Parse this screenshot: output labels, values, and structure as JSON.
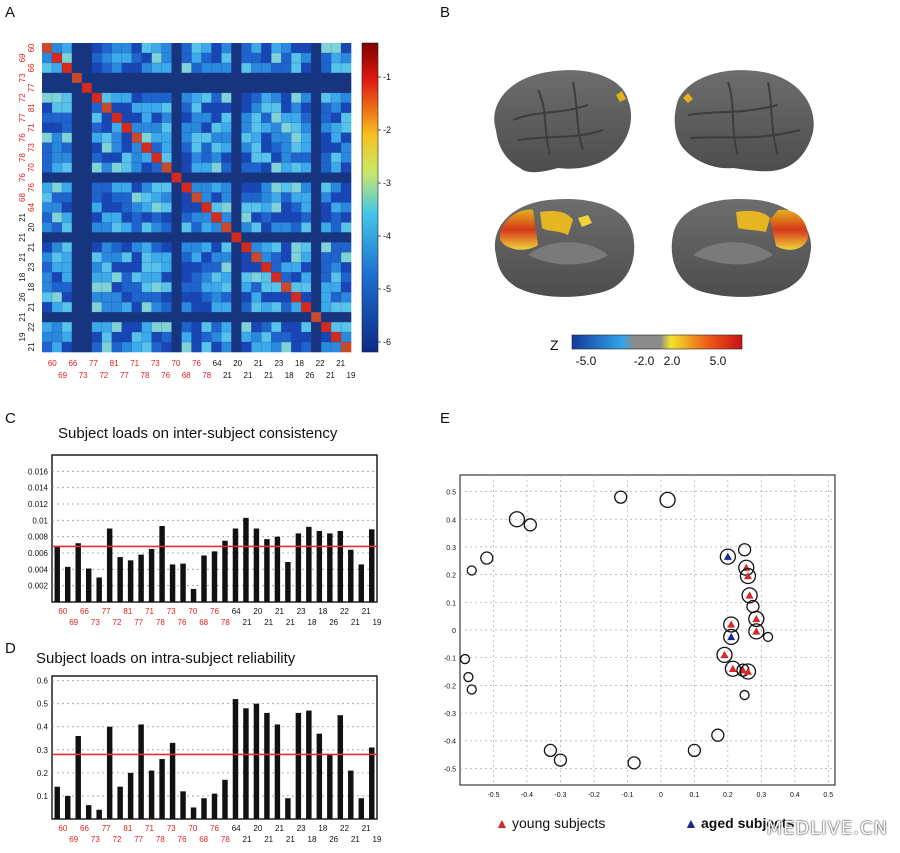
{
  "panels": {
    "a": "A",
    "b": "B",
    "c": "C",
    "d": "D",
    "e": "E"
  },
  "matrix": {
    "row_labels": [
      "60",
      "69",
      "66",
      "73",
      "77",
      "72",
      "81",
      "77",
      "71",
      "76",
      "73",
      "78",
      "70",
      "76",
      "76",
      "68",
      "64",
      "21",
      "20",
      "21",
      "21",
      "21",
      "23",
      "18",
      "18",
      "26",
      "21",
      "21",
      "22",
      "19",
      "21"
    ],
    "row_label_colors": [
      "red",
      "red",
      "red",
      "red",
      "red",
      "red",
      "red",
      "red",
      "red",
      "red",
      "red",
      "red",
      "red",
      "red",
      "red",
      "red",
      "red",
      "black",
      "black",
      "black",
      "black",
      "black",
      "black",
      "black",
      "black",
      "black",
      "black",
      "black",
      "black",
      "black",
      "black"
    ],
    "bottom_labels_top": [
      "60",
      "66",
      "77",
      "81",
      "71",
      "73",
      "70",
      "76",
      "64",
      "20",
      "21",
      "23",
      "18",
      "22",
      "21"
    ],
    "bottom_labels_bot": [
      "69",
      "73",
      "72",
      "77",
      "78",
      "76",
      "68",
      "78",
      "21",
      "21",
      "21",
      "18",
      "26",
      "21",
      "19"
    ],
    "colorbar_ticks": [
      "-1",
      "-2",
      "-3",
      "-4",
      "-5",
      "-6"
    ]
  },
  "brain": {
    "z_label": "Z",
    "scale_ticks": [
      "-5.0",
      "-2.0",
      "2.0",
      "5.0"
    ]
  },
  "chart_data": [
    {
      "id": "C",
      "type": "bar",
      "title": "Subject loads on inter-subject consistency",
      "yticks": [
        "0.002",
        "0.004",
        "0.006",
        "0.008",
        "0.01",
        "0.012",
        "0.014",
        "0.016"
      ],
      "ylim": [
        0,
        0.018
      ],
      "mean_line": 0.0068,
      "values": [
        0.0068,
        0.0043,
        0.0072,
        0.0041,
        0.003,
        0.009,
        0.0055,
        0.0051,
        0.0058,
        0.0065,
        0.0093,
        0.0046,
        0.0047,
        0.0016,
        0.0057,
        0.0062,
        0.0075,
        0.009,
        0.0103,
        0.009,
        0.0077,
        0.008,
        0.0049,
        0.0084,
        0.0092,
        0.0087,
        0.0084,
        0.0087,
        0.0064,
        0.0046,
        0.0089
      ],
      "xlabels_top": [
        "60",
        "66",
        "77",
        "81",
        "71",
        "73",
        "70",
        "76",
        "64",
        "20",
        "21",
        "23",
        "18",
        "22",
        "21"
      ],
      "xlabels_bot": [
        "69",
        "73",
        "72",
        "77",
        "78",
        "76",
        "68",
        "78",
        "21",
        "21",
        "21",
        "18",
        "26",
        "21",
        "19"
      ]
    },
    {
      "id": "D",
      "type": "bar",
      "title": "Subject loads on intra-subject reliability",
      "yticks": [
        "0.1",
        "0.2",
        "0.3",
        "0.4",
        "0.5",
        "0.6"
      ],
      "ylim": [
        0,
        0.62
      ],
      "mean_line": 0.28,
      "values": [
        0.14,
        0.1,
        0.36,
        0.06,
        0.04,
        0.4,
        0.14,
        0.2,
        0.41,
        0.21,
        0.26,
        0.33,
        0.12,
        0.05,
        0.09,
        0.11,
        0.17,
        0.52,
        0.48,
        0.5,
        0.46,
        0.41,
        0.09,
        0.46,
        0.47,
        0.37,
        0.28,
        0.45,
        0.21,
        0.09,
        0.31
      ],
      "xlabels_top": [
        "60",
        "66",
        "77",
        "81",
        "71",
        "73",
        "70",
        "76",
        "64",
        "20",
        "21",
        "23",
        "18",
        "22",
        "21"
      ],
      "xlabels_bot": [
        "69",
        "73",
        "72",
        "77",
        "78",
        "76",
        "68",
        "78",
        "21",
        "21",
        "21",
        "18",
        "26",
        "21",
        "19"
      ]
    },
    {
      "id": "E",
      "type": "scatter",
      "xticks": [
        "-0.5",
        "-0.4",
        "-0.3",
        "-0.2",
        "-0.1",
        "0",
        "0.1",
        "0.2",
        "0.3",
        "0.4",
        "0.5"
      ],
      "yticks": [
        "0.5",
        "0.4",
        "0.3",
        "0.2",
        "0.1",
        "0",
        "-0.1",
        "-0.2",
        "-0.3",
        "-0.4",
        "-0.5"
      ],
      "xlim": [
        -0.6,
        0.52
      ],
      "ylim": [
        -0.56,
        0.56
      ],
      "legend": {
        "young": "young subjects",
        "aged": "aged subjects"
      },
      "points": [
        {
          "x": -0.585,
          "y": -0.105,
          "s": "s",
          "m": "none"
        },
        {
          "x": -0.575,
          "y": -0.17,
          "s": "s",
          "m": "none"
        },
        {
          "x": -0.565,
          "y": -0.215,
          "s": "s",
          "m": "none"
        },
        {
          "x": -0.565,
          "y": 0.215,
          "s": "s",
          "m": "none"
        },
        {
          "x": -0.52,
          "y": 0.26,
          "s": "m",
          "m": "none"
        },
        {
          "x": -0.43,
          "y": 0.4,
          "s": "l",
          "m": "none"
        },
        {
          "x": -0.39,
          "y": 0.38,
          "s": "m",
          "m": "none"
        },
        {
          "x": -0.33,
          "y": -0.435,
          "s": "m",
          "m": "none"
        },
        {
          "x": -0.3,
          "y": -0.47,
          "s": "m",
          "m": "none"
        },
        {
          "x": -0.12,
          "y": 0.48,
          "s": "m",
          "m": "none"
        },
        {
          "x": -0.08,
          "y": -0.48,
          "s": "m",
          "m": "none"
        },
        {
          "x": 0.02,
          "y": 0.47,
          "s": "l",
          "m": "none"
        },
        {
          "x": 0.1,
          "y": -0.435,
          "s": "m",
          "m": "none"
        },
        {
          "x": 0.17,
          "y": -0.38,
          "s": "m",
          "m": "none"
        },
        {
          "x": 0.2,
          "y": 0.265,
          "s": "l",
          "m": "aged"
        },
        {
          "x": 0.25,
          "y": 0.29,
          "s": "m",
          "m": "none"
        },
        {
          "x": 0.255,
          "y": 0.225,
          "s": "l",
          "m": "young"
        },
        {
          "x": 0.26,
          "y": 0.195,
          "s": "l",
          "m": "young"
        },
        {
          "x": 0.265,
          "y": 0.125,
          "s": "l",
          "m": "young"
        },
        {
          "x": 0.275,
          "y": 0.085,
          "s": "m",
          "m": "none"
        },
        {
          "x": 0.285,
          "y": 0.04,
          "s": "l",
          "m": "young"
        },
        {
          "x": 0.21,
          "y": 0.02,
          "s": "l",
          "m": "young"
        },
        {
          "x": 0.285,
          "y": -0.005,
          "s": "l",
          "m": "young"
        },
        {
          "x": 0.21,
          "y": -0.025,
          "s": "l",
          "m": "aged"
        },
        {
          "x": 0.32,
          "y": -0.025,
          "s": "s",
          "m": "none"
        },
        {
          "x": 0.19,
          "y": -0.09,
          "s": "l",
          "m": "young"
        },
        {
          "x": 0.215,
          "y": -0.14,
          "s": "l",
          "m": "young"
        },
        {
          "x": 0.245,
          "y": -0.145,
          "s": "m",
          "m": "young"
        },
        {
          "x": 0.26,
          "y": -0.15,
          "s": "l",
          "m": "young"
        },
        {
          "x": 0.25,
          "y": -0.235,
          "s": "s",
          "m": "none"
        }
      ]
    }
  ],
  "watermark": "MEDLIVE.CN",
  "colors": {
    "red_label": "#e02020",
    "mean_line": "#e03030",
    "young": "#d62828",
    "aged": "#1a2a8c"
  }
}
